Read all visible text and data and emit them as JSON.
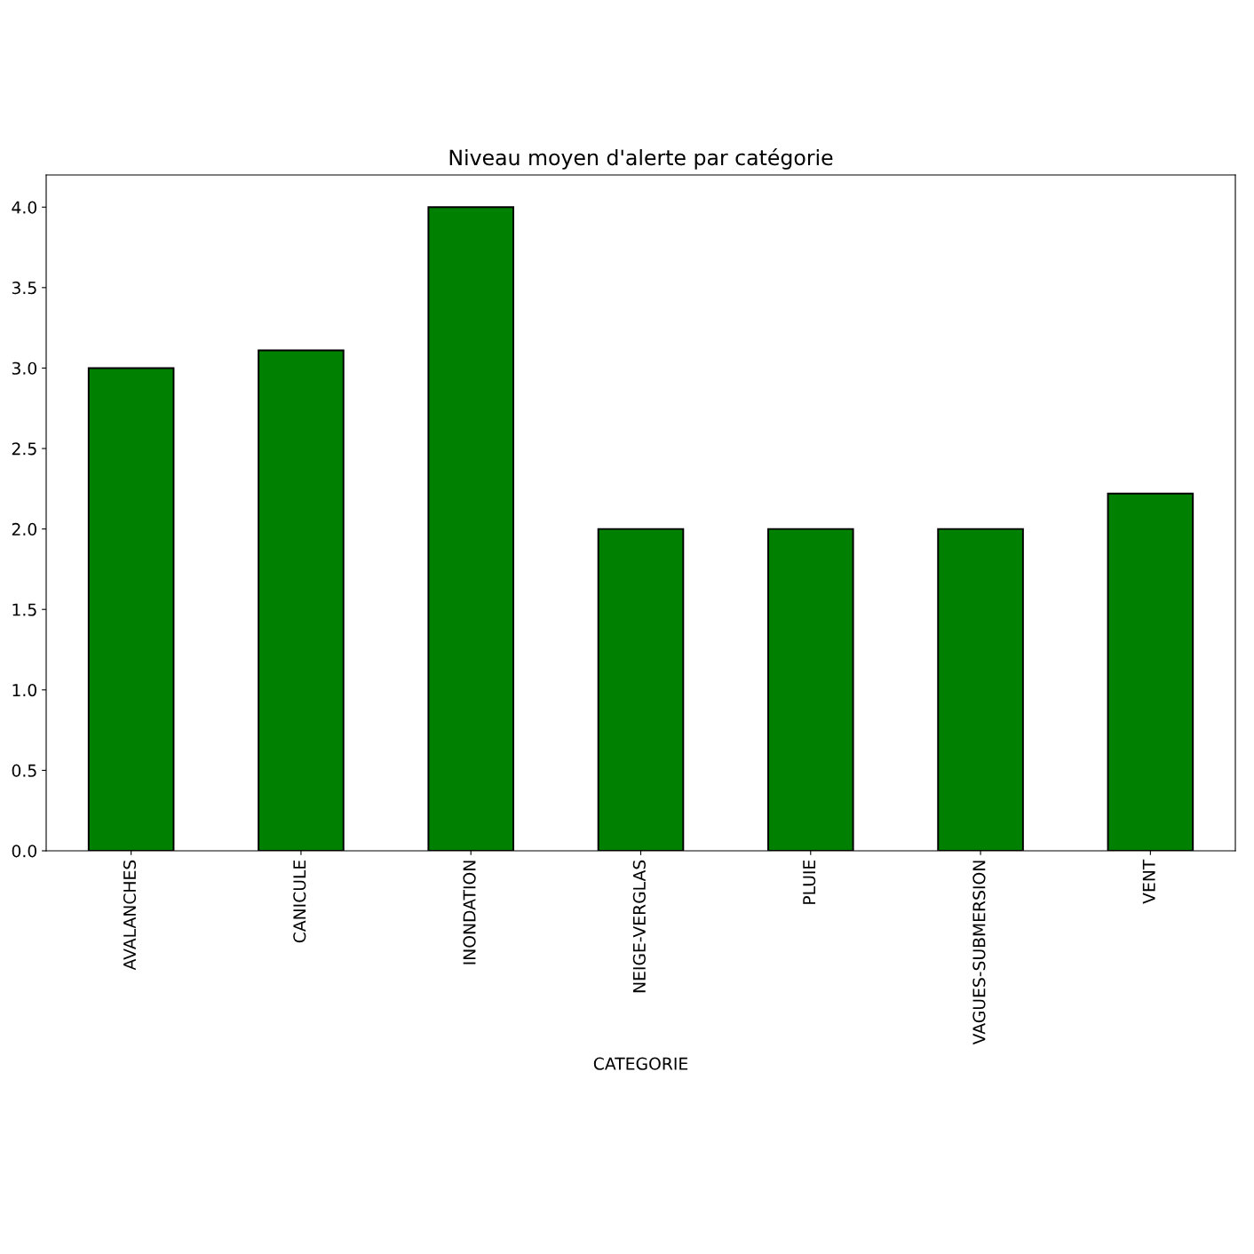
{
  "chart_data": {
    "type": "bar",
    "title": "Niveau moyen d'alerte par catégorie",
    "xlabel": "CATEGORIE",
    "categories": [
      "AVALANCHES",
      "CANICULE",
      "INONDATION",
      "NEIGE-VERGLAS",
      "PLUIE",
      "VAGUES-SUBMERSION",
      "VENT"
    ],
    "values": [
      3.0,
      3.11,
      4.0,
      2.0,
      2.0,
      2.0,
      2.22
    ],
    "color": "#008000",
    "ylim": [
      0,
      4.2
    ],
    "yticks": [
      {
        "value": 0,
        "label": "0.0"
      },
      0.5,
      {
        "value": 1,
        "label": "1.0"
      },
      1.5,
      {
        "value": 2,
        "label": "2.0"
      },
      2.5,
      {
        "value": 3,
        "label": "3.0"
      },
      3.5,
      {
        "value": 4,
        "label": "4.0"
      }
    ],
    "grid": false
  }
}
